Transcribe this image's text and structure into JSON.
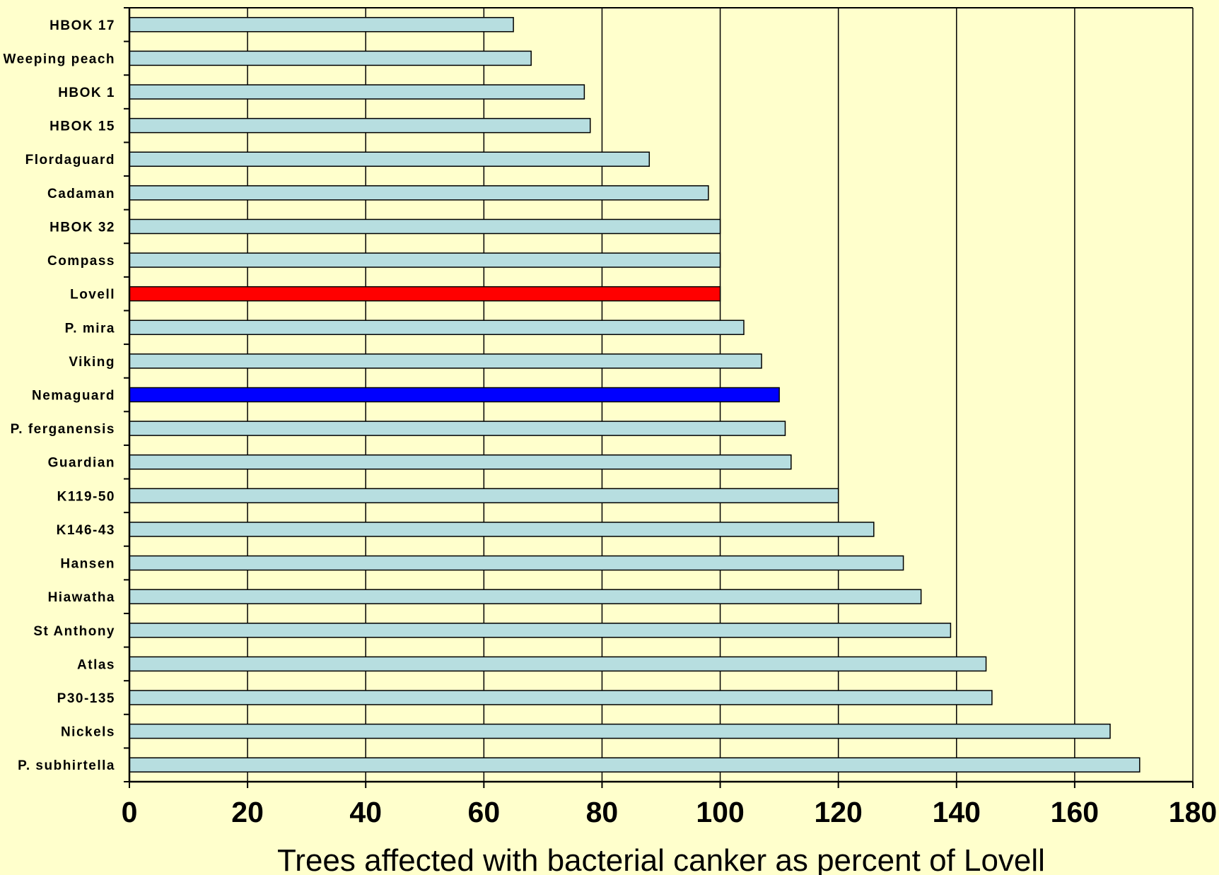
{
  "colors": {
    "background": "#ffffcc",
    "bar_default": "#b7dee0",
    "bar_lovell": "#ff0000",
    "bar_nemaguard": "#0000ff"
  },
  "chart_data": {
    "type": "bar",
    "orientation": "horizontal",
    "title": "",
    "xlabel": "Trees affected with bacterial canker as percent of Lovell",
    "ylabel": "",
    "xlim": [
      0,
      180
    ],
    "x_ticks": [
      0,
      20,
      40,
      60,
      80,
      100,
      120,
      140,
      160,
      180
    ],
    "grid": "vertical gridlines at major ticks",
    "legend": "none",
    "categories": [
      "HBOK 17",
      "Weeping peach",
      "HBOK 1",
      "HBOK 15",
      "Flordaguard",
      "Cadaman",
      "HBOK 32",
      "Compass",
      "Lovell",
      "P. mira",
      "Viking",
      "Nemaguard",
      "P. ferganensis",
      "Guardian",
      "K119-50",
      "K146-43",
      "Hansen",
      "Hiawatha",
      "St Anthony",
      "Atlas",
      "P30-135",
      "Nickels",
      "P. subhirtella"
    ],
    "values": [
      65,
      68,
      77,
      78,
      88,
      98,
      100,
      100,
      100,
      104,
      107,
      110,
      111,
      112,
      120,
      126,
      131,
      134,
      139,
      145,
      146,
      166,
      171
    ],
    "highlight": {
      "Lovell": "#ff0000",
      "Nemaguard": "#0000ff"
    }
  }
}
